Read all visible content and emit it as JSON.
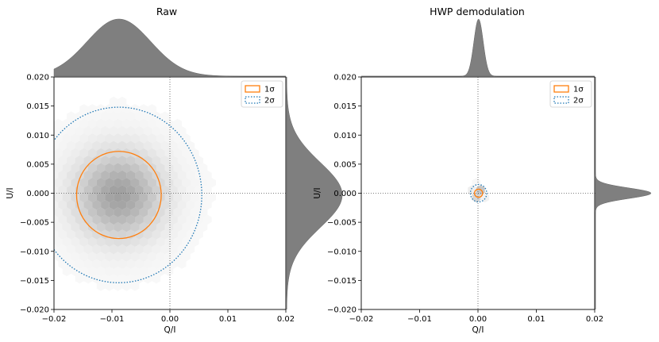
{
  "chart_data": [
    {
      "type": "hexbin",
      "title": "Raw",
      "xlabel": "Q/I",
      "ylabel": "U/I",
      "xlim": [
        -0.02,
        0.02
      ],
      "ylim": [
        -0.02,
        0.02
      ],
      "xticks": [
        -0.02,
        -0.01,
        0.0,
        0.01,
        0.02
      ],
      "xtick_labels": [
        "−0.02",
        "−0.01",
        "0.00",
        "0.01",
        "0.02"
      ],
      "yticks": [
        0.02,
        0.015,
        0.01,
        0.005,
        0.0,
        -0.005,
        -0.01,
        -0.015,
        -0.02
      ],
      "ytick_labels": [
        "0.020",
        "0.015",
        "0.010",
        "0.005",
        "0.000",
        "−0.005",
        "−0.010",
        "−0.015",
        "−0.020"
      ],
      "distribution": {
        "center_q": -0.0088,
        "center_u": -0.0003,
        "sigma": 0.0052
      },
      "contours": [
        {
          "label": "1σ",
          "center": [
            -0.0088,
            -0.0003
          ],
          "radius_q": 0.0073,
          "radius_u": 0.0075,
          "style": "solid",
          "color": "#ff7f0e"
        },
        {
          "label": "2σ",
          "center": [
            -0.0088,
            -0.0003
          ],
          "radius_q": 0.0143,
          "radius_u": 0.0151,
          "style": "dotted",
          "color": "#1f77b4"
        }
      ],
      "marginals": {
        "q_peak": -0.0088,
        "q_width": 0.0055,
        "u_peak": -0.0003,
        "u_width": 0.0056
      },
      "legend": {
        "entries": [
          "1σ",
          "2σ"
        ],
        "position": "top-right"
      }
    },
    {
      "type": "hexbin",
      "title": "HWP demodulation",
      "xlabel": "Q/I",
      "ylabel": "U/I",
      "xlim": [
        -0.02,
        0.02
      ],
      "ylim": [
        -0.02,
        0.02
      ],
      "xticks": [
        -0.02,
        -0.01,
        0.0,
        0.01,
        0.02
      ],
      "xtick_labels": [
        "−0.02",
        "−0.01",
        "0.00",
        "0.01",
        "0.02"
      ],
      "yticks": [
        0.02,
        0.015,
        0.01,
        0.005,
        0.0,
        -0.005,
        -0.01,
        -0.015,
        -0.02
      ],
      "ytick_labels": [
        "0.020",
        "0.015",
        "0.010",
        "0.005",
        "0.000",
        "−0.005",
        "−0.010",
        "−0.015",
        "−0.020"
      ],
      "distribution": {
        "center_q": 0.0001,
        "center_u": 0.0,
        "sigma": 0.0006
      },
      "contours": [
        {
          "label": "1σ",
          "center": [
            0.0001,
            0.0
          ],
          "radius_q": 0.0007,
          "radius_u": 0.0007,
          "style": "solid",
          "color": "#ff7f0e"
        },
        {
          "label": "2σ",
          "center": [
            0.0001,
            0.0
          ],
          "radius_q": 0.0014,
          "radius_u": 0.0015,
          "style": "dotted",
          "color": "#1f77b4"
        }
      ],
      "marginals": {
        "q_peak": 0.0001,
        "q_width": 0.0008,
        "u_peak": 0.0,
        "u_width": 0.0009
      },
      "legend": {
        "entries": [
          "1σ",
          "2σ"
        ],
        "position": "top-right"
      }
    }
  ],
  "colors": {
    "one_sigma": "#ff7f0e",
    "two_sigma": "#1f77b4",
    "marginal": "#7f7f7f",
    "hex_base": "#808080"
  }
}
